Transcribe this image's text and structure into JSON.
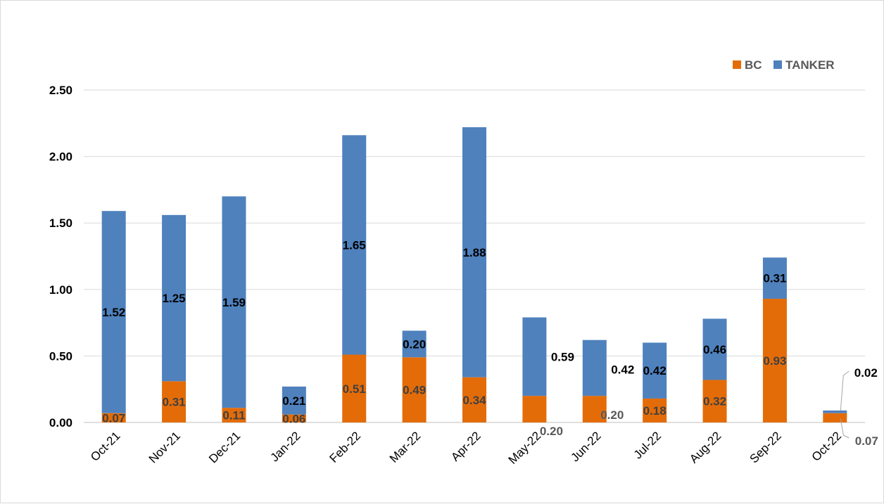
{
  "chart_data": {
    "type": "bar",
    "stacked": true,
    "categories": [
      "Oct-21",
      "Nov-21",
      "Dec-21",
      "Jan-22",
      "Feb-22",
      "Mar-22",
      "Apr-22",
      "May-22",
      "Jun-22",
      "Jul-22",
      "Aug-22",
      "Sep-22",
      "Oct-22"
    ],
    "series": [
      {
        "name": "BC",
        "color": "#E36C09",
        "values": [
          0.07,
          0.31,
          0.11,
          0.06,
          0.51,
          0.49,
          0.34,
          0.2,
          0.2,
          0.18,
          0.32,
          0.93,
          0.07
        ],
        "labels": [
          "0.07",
          "0.31",
          "0.11",
          "0.06",
          "0.51",
          "0.49",
          "0.34",
          "0.20",
          "0.20",
          "0.18",
          "0.32",
          "0.93",
          "0.07"
        ]
      },
      {
        "name": "TANKER",
        "color": "#4F81BD",
        "values": [
          1.52,
          1.25,
          1.59,
          0.21,
          1.65,
          0.2,
          1.88,
          0.59,
          0.42,
          0.42,
          0.46,
          0.31,
          0.02
        ],
        "labels": [
          "1.52",
          "1.25",
          "1.59",
          "0.21",
          "1.65",
          "0.20",
          "1.88",
          "0.59",
          "0.42",
          "0.42",
          "0.46",
          "0.31",
          "0.02"
        ]
      }
    ],
    "yticks": [
      "0.00",
      "0.50",
      "1.00",
      "1.50",
      "2.00",
      "2.50"
    ],
    "ylim": [
      0,
      2.5
    ],
    "grid": true,
    "legend": "top-right",
    "title": "",
    "xlabel": "",
    "ylabel": ""
  }
}
